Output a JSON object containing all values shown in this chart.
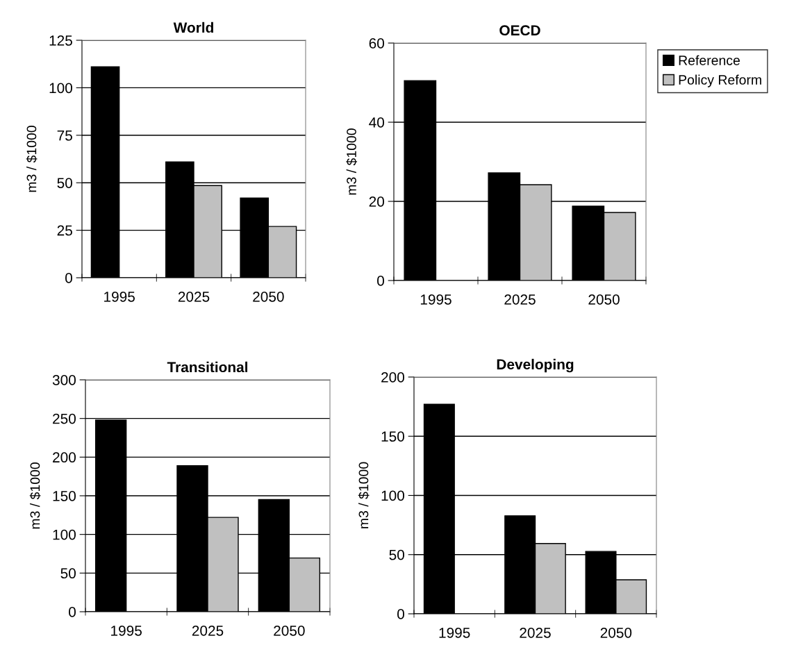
{
  "chart_data": [
    {
      "type": "bar",
      "title": "World",
      "ylabel": "m3 / $1000",
      "categories": [
        "1995",
        "2025",
        "2050"
      ],
      "ylim": [
        0,
        125
      ],
      "yticks": [
        0,
        25,
        50,
        75,
        100,
        125
      ],
      "grid": "y",
      "series": [
        {
          "color": "#000000",
          "values": [
            111,
            61,
            42
          ]
        },
        {
          "color": "#c0c0c0",
          "values": [
            null,
            48.5,
            27
          ]
        }
      ]
    },
    {
      "type": "bar",
      "title": "OECD",
      "ylabel": "m3 / $1000",
      "categories": [
        "1995",
        "2025",
        "2050"
      ],
      "ylim": [
        0,
        60
      ],
      "yticks": [
        0,
        20,
        40,
        60
      ],
      "grid": "y",
      "legend": "top right",
      "series": [
        {
          "name": "Reference",
          "color": "#000000",
          "values": [
            50.5,
            27.2,
            18.8
          ]
        },
        {
          "name": "Policy Reform",
          "color": "#c0c0c0",
          "values": [
            null,
            24.2,
            17.2
          ]
        }
      ]
    },
    {
      "type": "bar",
      "title": "Transitional",
      "ylabel": "m3 / $1000",
      "categories": [
        "1995",
        "2025",
        "2050"
      ],
      "ylim": [
        0,
        300
      ],
      "yticks": [
        0,
        50,
        100,
        150,
        200,
        250,
        300
      ],
      "grid": "y",
      "series": [
        {
          "color": "#000000",
          "values": [
            248,
            189,
            145
          ]
        },
        {
          "color": "#c0c0c0",
          "values": [
            null,
            122,
            69.5
          ]
        }
      ]
    },
    {
      "type": "bar",
      "title": "Developing",
      "ylabel": "m3 / $1000",
      "categories": [
        "1995",
        "2025",
        "2050"
      ],
      "ylim": [
        0,
        200
      ],
      "yticks": [
        0,
        50,
        100,
        150,
        200
      ],
      "grid": "y",
      "series": [
        {
          "color": "#000000",
          "values": [
            177,
            82.8,
            52.7
          ]
        },
        {
          "color": "#c0c0c0",
          "values": [
            null,
            59.4,
            28.7
          ]
        }
      ]
    }
  ]
}
